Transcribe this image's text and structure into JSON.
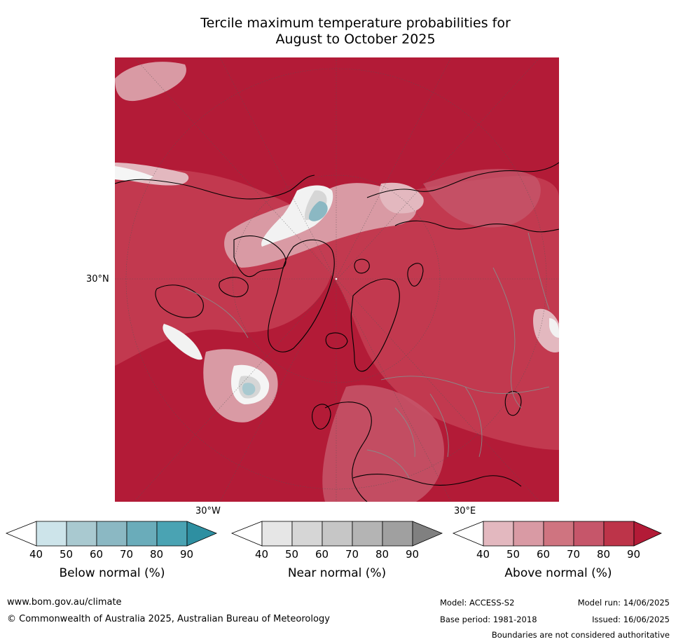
{
  "title_line1": "Tercile maximum temperature probabilities for",
  "title_line2": "August to October 2025",
  "map": {
    "lat_labels": [
      "30°N"
    ],
    "lon_labels": [
      "30°W",
      "30°E"
    ],
    "background_color": "#b31b37"
  },
  "colorbars": [
    {
      "title": "Below normal (%)",
      "ticks": [
        "40",
        "50",
        "60",
        "70",
        "80",
        "90"
      ],
      "colors": [
        "#ffffff",
        "#cde4ea",
        "#a9c9d0",
        "#8bb8c3",
        "#6aacba",
        "#4aa3b3",
        "#2e8fa1"
      ]
    },
    {
      "title": "Near normal (%)",
      "ticks": [
        "40",
        "50",
        "60",
        "70",
        "80",
        "90"
      ],
      "colors": [
        "#ffffff",
        "#e6e6e6",
        "#d6d6d6",
        "#c6c6c6",
        "#b4b4b4",
        "#a0a0a0",
        "#808080"
      ]
    },
    {
      "title": "Above normal (%)",
      "ticks": [
        "40",
        "50",
        "60",
        "70",
        "80",
        "90"
      ],
      "colors": [
        "#ffffff",
        "#e3b8bf",
        "#d99aa4",
        "#cf7480",
        "#c6566a",
        "#bd3449",
        "#b31b37"
      ]
    }
  ],
  "footer": {
    "url": "www.bom.gov.au/climate",
    "copyright": "© Commonwealth of Australia 2025, Australian Bureau of Meteorology",
    "model": "Model: ACCESS-S2",
    "model_run": "Model run: 14/06/2025",
    "base_period": "Base period: 1981-2018",
    "issued": "Issued: 16/06/2025",
    "disclaimer": "Boundaries are not considered authoritative"
  }
}
